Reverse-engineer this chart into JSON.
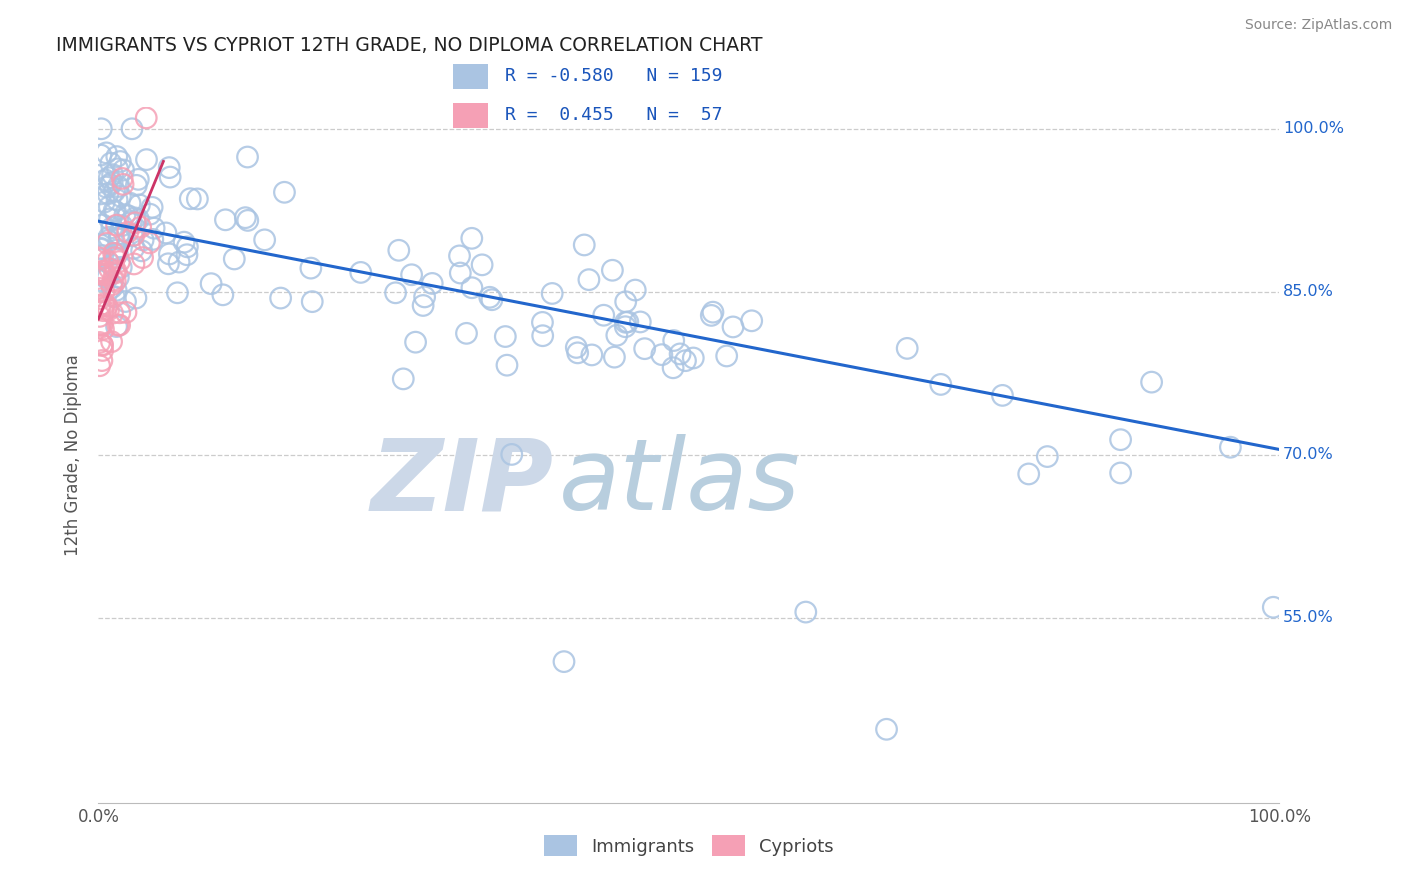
{
  "title": "IMMIGRANTS VS CYPRIOT 12TH GRADE, NO DIPLOMA CORRELATION CHART",
  "source": "Source: ZipAtlas.com",
  "ylabel": "12th Grade, No Diploma",
  "legend_blue_R": "-0.580",
  "legend_blue_N": "159",
  "legend_pink_R": "0.455",
  "legend_pink_N": "57",
  "legend_label_blue": "Immigrants",
  "legend_label_pink": "Cypriots",
  "blue_color": "#aac4e2",
  "pink_color": "#f5a0b5",
  "line_color": "#2266cc",
  "pink_line_color": "#cc3366",
  "watermark_zip_color": "#ccd8e8",
  "watermark_atlas_color": "#b8cede",
  "background_color": "#ffffff",
  "grid_color": "#cccccc",
  "xmin": 0.0,
  "xmax": 1.0,
  "ymin": 0.38,
  "ymax": 1.02,
  "yticks": [
    1.0,
    0.85,
    0.7,
    0.55
  ],
  "ytick_labels": [
    "100.0%",
    "85.0%",
    "70.0%",
    "55.0%"
  ],
  "xticks": [
    0.0,
    1.0
  ],
  "xtick_labels": [
    "0.0%",
    "100.0%"
  ],
  "blue_line_x": [
    0.0,
    1.0
  ],
  "blue_line_y": [
    0.915,
    0.705
  ],
  "pink_line_x": [
    0.0,
    0.055
  ],
  "pink_line_y": [
    0.825,
    0.97
  ]
}
